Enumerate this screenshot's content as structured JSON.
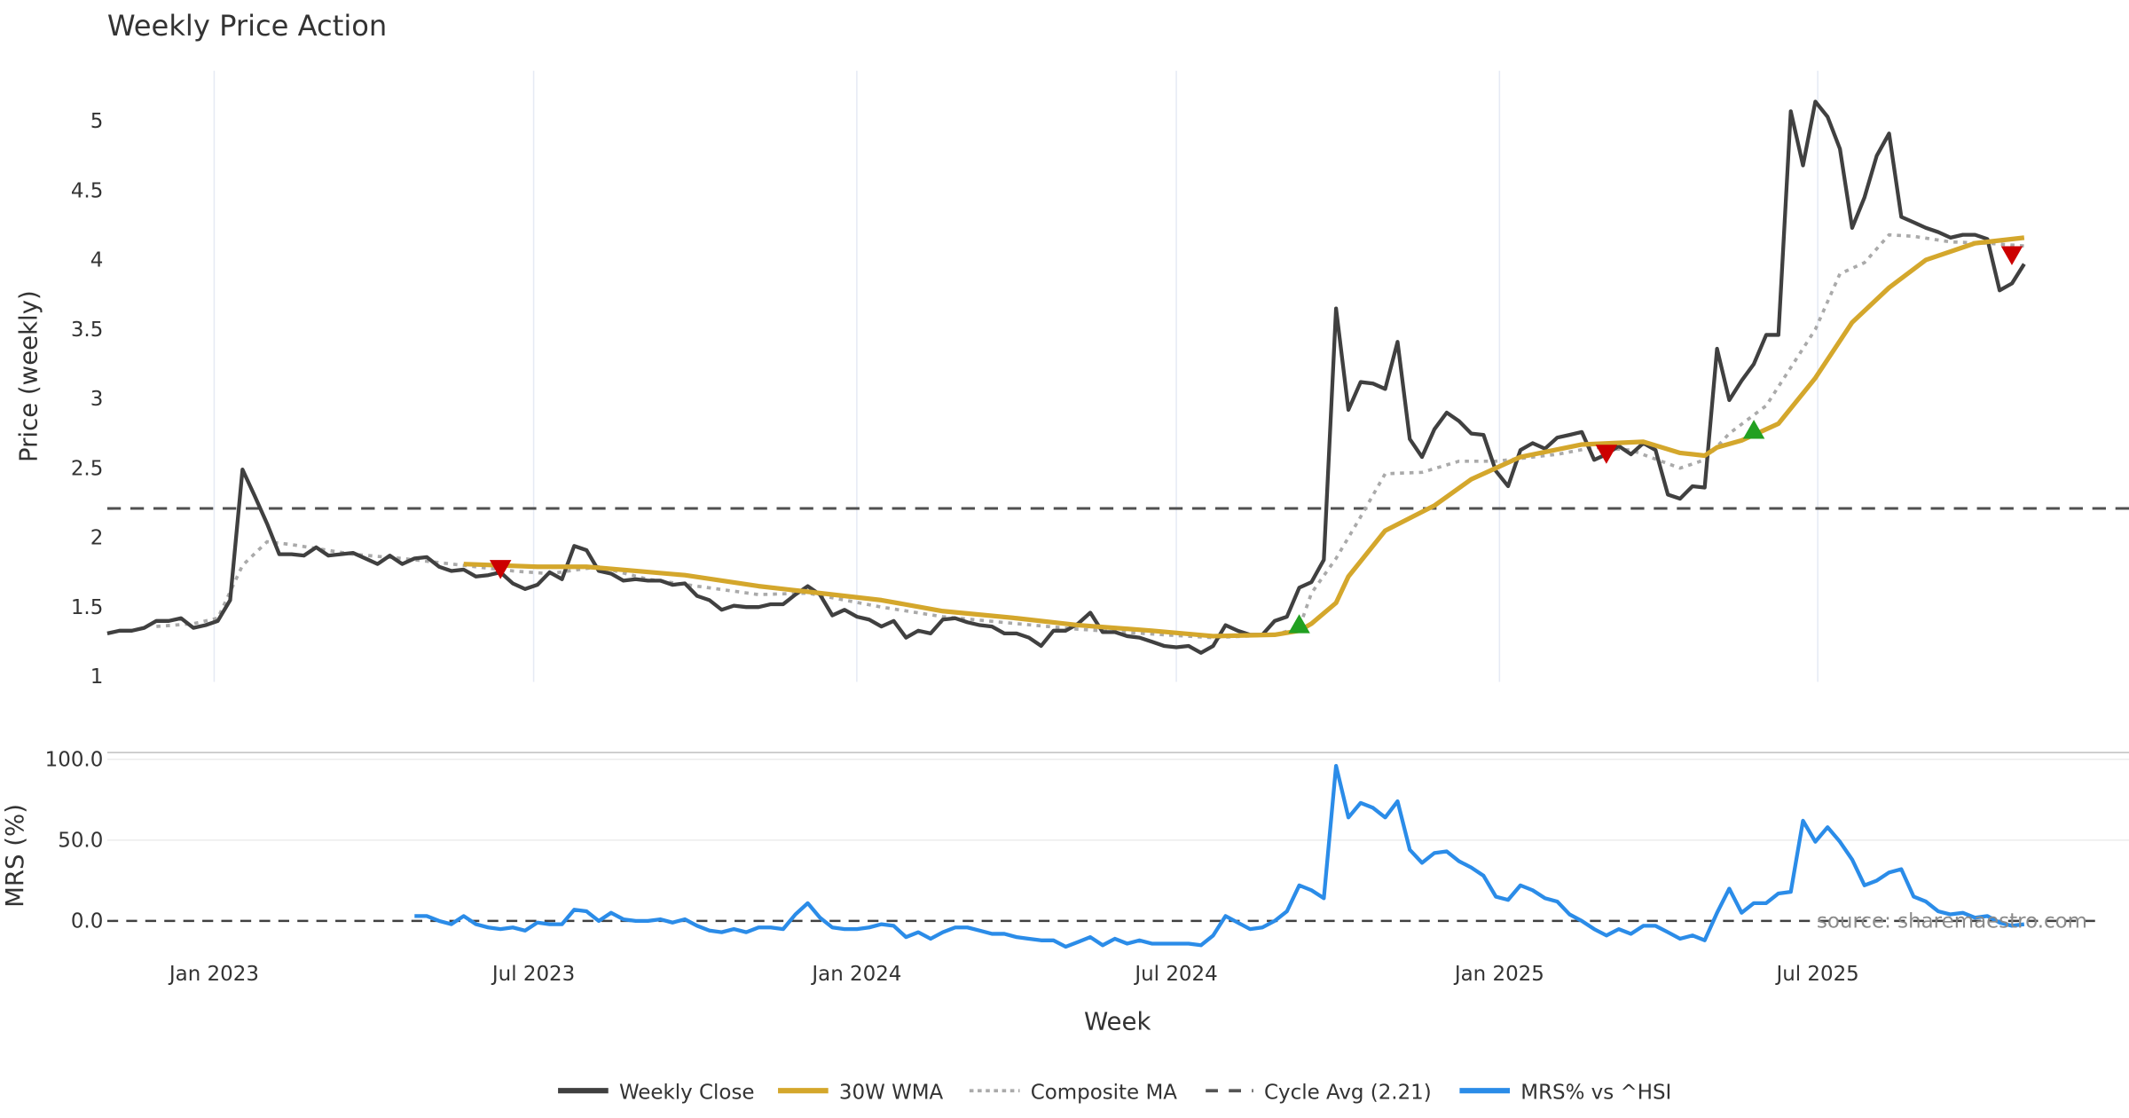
{
  "chart_data": [
    {
      "type": "line",
      "title": "Weekly Price Action",
      "ylabel": "Price (weekly)",
      "ylim": [
        1,
        5.3
      ],
      "yticks": [
        "1",
        "1.5",
        "2",
        "2.5",
        "3",
        "3.5",
        "4",
        "4.5",
        "5"
      ],
      "ytick_values": [
        1,
        1.5,
        2,
        2.5,
        3,
        3.5,
        4,
        4.5,
        5
      ],
      "x_unit": "weeks since first bar",
      "cycle_avg": 2.21,
      "series": [
        {
          "name": "Weekly Close",
          "color": "#404040",
          "start_week": 0,
          "values": [
            1.31,
            1.33,
            1.33,
            1.35,
            1.4,
            1.4,
            1.42,
            1.35,
            1.37,
            1.4,
            1.55,
            2.49,
            2.3,
            2.1,
            1.88,
            1.88,
            1.87,
            1.93,
            1.87,
            1.88,
            1.89,
            1.85,
            1.81,
            1.87,
            1.81,
            1.85,
            1.86,
            1.79,
            1.76,
            1.77,
            1.72,
            1.73,
            1.75,
            1.67,
            1.63,
            1.66,
            1.75,
            1.7,
            1.94,
            1.91,
            1.76,
            1.74,
            1.69,
            1.7,
            1.69,
            1.69,
            1.66,
            1.67,
            1.58,
            1.55,
            1.48,
            1.51,
            1.5,
            1.5,
            1.52,
            1.52,
            1.59,
            1.65,
            1.59,
            1.44,
            1.48,
            1.43,
            1.41,
            1.36,
            1.4,
            1.28,
            1.33,
            1.31,
            1.41,
            1.42,
            1.39,
            1.37,
            1.36,
            1.31,
            1.31,
            1.28,
            1.22,
            1.33,
            1.33,
            1.38,
            1.46,
            1.32,
            1.32,
            1.29,
            1.28,
            1.25,
            1.22,
            1.21,
            1.22,
            1.17,
            1.22,
            1.37,
            1.33,
            1.3,
            1.3,
            1.4,
            1.43,
            1.64,
            1.68,
            1.84,
            3.65,
            2.92,
            3.12,
            3.11,
            3.07,
            3.41,
            2.71,
            2.58,
            2.78,
            2.9,
            2.84,
            2.75,
            2.74,
            2.48,
            2.37,
            2.63,
            2.68,
            2.64,
            2.72,
            2.74,
            2.76,
            2.56,
            2.6,
            2.66,
            2.6,
            2.68,
            2.63,
            2.31,
            2.28,
            2.37,
            2.36,
            3.36,
            2.99,
            3.13,
            3.25,
            3.46,
            3.46,
            5.07,
            4.68,
            5.14,
            5.03,
            4.8,
            4.23,
            4.45,
            4.75,
            4.91,
            4.31,
            4.27,
            4.23,
            4.2,
            4.16,
            4.18,
            4.18,
            4.15,
            3.78,
            3.83,
            3.97
          ]
        },
        {
          "name": "30W WMA",
          "color": "#D4A72C",
          "points": [
            [
              29,
              1.81
            ],
            [
              32,
              1.8
            ],
            [
              35,
              1.79
            ],
            [
              39,
              1.79
            ],
            [
              43,
              1.76
            ],
            [
              47,
              1.73
            ],
            [
              53,
              1.65
            ],
            [
              57,
              1.61
            ],
            [
              63,
              1.55
            ],
            [
              68,
              1.47
            ],
            [
              74,
              1.42
            ],
            [
              79,
              1.37
            ],
            [
              85,
              1.33
            ],
            [
              90,
              1.29
            ],
            [
              95,
              1.3
            ],
            [
              97,
              1.33
            ],
            [
              98,
              1.38
            ],
            [
              100,
              1.53
            ],
            [
              101,
              1.72
            ],
            [
              104,
              2.05
            ],
            [
              108,
              2.23
            ],
            [
              111,
              2.42
            ],
            [
              115,
              2.58
            ],
            [
              120,
              2.67
            ],
            [
              125,
              2.69
            ],
            [
              128,
              2.61
            ],
            [
              130,
              2.59
            ],
            [
              131,
              2.65
            ],
            [
              133,
              2.7
            ],
            [
              136,
              2.82
            ],
            [
              139,
              3.15
            ],
            [
              142,
              3.55
            ],
            [
              145,
              3.8
            ],
            [
              148,
              4.0
            ],
            [
              152,
              4.12
            ],
            [
              156,
              4.16
            ]
          ]
        },
        {
          "name": "Composite MA",
          "color": "#aaaaaa",
          "points": [
            [
              4,
              1.36
            ],
            [
              7,
              1.38
            ],
            [
              9,
              1.42
            ],
            [
              11,
              1.8
            ],
            [
              13,
              1.97
            ],
            [
              15,
              1.95
            ],
            [
              20,
              1.88
            ],
            [
              24,
              1.85
            ],
            [
              29,
              1.8
            ],
            [
              33,
              1.76
            ],
            [
              36,
              1.74
            ],
            [
              40,
              1.79
            ],
            [
              44,
              1.7
            ],
            [
              48,
              1.65
            ],
            [
              53,
              1.59
            ],
            [
              57,
              1.6
            ],
            [
              63,
              1.5
            ],
            [
              68,
              1.43
            ],
            [
              74,
              1.38
            ],
            [
              79,
              1.34
            ],
            [
              86,
              1.3
            ],
            [
              90,
              1.28
            ],
            [
              95,
              1.3
            ],
            [
              97,
              1.35
            ],
            [
              98,
              1.6
            ],
            [
              100,
              1.85
            ],
            [
              102,
              2.15
            ],
            [
              104,
              2.46
            ],
            [
              107,
              2.47
            ],
            [
              110,
              2.55
            ],
            [
              113,
              2.55
            ],
            [
              118,
              2.6
            ],
            [
              121,
              2.65
            ],
            [
              124,
              2.63
            ],
            [
              128,
              2.5
            ],
            [
              130,
              2.56
            ],
            [
              132,
              2.75
            ],
            [
              135,
              2.95
            ],
            [
              139,
              3.5
            ],
            [
              141,
              3.9
            ],
            [
              143,
              3.98
            ],
            [
              145,
              4.18
            ],
            [
              147,
              4.17
            ],
            [
              150,
              4.13
            ],
            [
              153,
              4.12
            ],
            [
              156,
              4.1
            ]
          ]
        }
      ],
      "signals": [
        {
          "type": "sell",
          "week": 32,
          "value": 1.77,
          "color": "#cc0000"
        },
        {
          "type": "buy",
          "week": 97,
          "value": 1.38,
          "color": "#22a022"
        },
        {
          "type": "sell",
          "week": 122,
          "value": 2.6,
          "color": "#cc0000"
        },
        {
          "type": "buy",
          "week": 134,
          "value": 2.78,
          "color": "#22a022"
        },
        {
          "type": "sell",
          "week": 155,
          "value": 4.03,
          "color": "#cc0000"
        }
      ]
    },
    {
      "type": "line",
      "ylabel": "MRS (%)",
      "xlabel": "Week",
      "ylim": [
        -20,
        104
      ],
      "yticks": [
        "0.0",
        "50.0",
        "100.0"
      ],
      "ytick_values": [
        0,
        50,
        100
      ],
      "series": [
        {
          "name": "MRS% vs ^HSI",
          "color": "#2b8ce8",
          "start_week": 25,
          "values": [
            3,
            3,
            0,
            -2,
            3,
            -2,
            -4,
            -5,
            -4,
            -6,
            -1,
            -2,
            -2,
            7,
            6,
            0,
            5,
            1,
            0,
            0,
            1,
            -1,
            1,
            -3,
            -6,
            -7,
            -5,
            -7,
            -4,
            -4,
            -5,
            4,
            11,
            2,
            -4,
            -5,
            -5,
            -4,
            -2,
            -3,
            -10,
            -7,
            -11,
            -7,
            -4,
            -4,
            -6,
            -8,
            -8,
            -10,
            -11,
            -12,
            -12,
            -16,
            -13,
            -10,
            -15,
            -11,
            -14,
            -12,
            -14,
            -14,
            -14,
            -14,
            -15,
            -9,
            3,
            -1,
            -5,
            -4,
            0,
            6,
            22,
            19,
            14,
            96,
            64,
            73,
            70,
            64,
            74,
            44,
            36,
            42,
            43,
            37,
            33,
            28,
            15,
            13,
            22,
            19,
            14,
            12,
            4,
            0,
            -5,
            -9,
            -5,
            -8,
            -3,
            -3,
            -7,
            -11,
            -9,
            -12,
            5,
            20,
            5,
            11,
            11,
            17,
            18,
            62,
            49,
            58,
            49,
            38,
            22,
            25,
            30,
            32,
            15,
            12,
            6,
            4,
            5,
            2,
            3,
            -1,
            -3,
            -2
          ]
        }
      ]
    }
  ],
  "xticks": [
    {
      "label": "Jan 2023",
      "week": 8.7
    },
    {
      "label": "Jul 2023",
      "week": 34.7
    },
    {
      "label": "Jan 2024",
      "week": 61.0
    },
    {
      "label": "Jul 2024",
      "week": 87.0
    },
    {
      "label": "Jan 2025",
      "week": 113.3
    },
    {
      "label": "Jul 2025",
      "week": 139.2
    }
  ],
  "legend": {
    "placement": "bottom-center",
    "items": [
      {
        "label": "Weekly Close",
        "color": "#404040",
        "style": "solid"
      },
      {
        "label": "30W WMA",
        "color": "#D4A72C",
        "style": "solid"
      },
      {
        "label": "Composite MA",
        "color": "#aaaaaa",
        "style": "dotted"
      },
      {
        "label": "Cycle Avg (2.21)",
        "color": "#555555",
        "style": "dashed"
      },
      {
        "label": "MRS% vs ^HSI",
        "color": "#2b8ce8",
        "style": "solid"
      }
    ]
  },
  "source": "source: sharemaestro.com"
}
